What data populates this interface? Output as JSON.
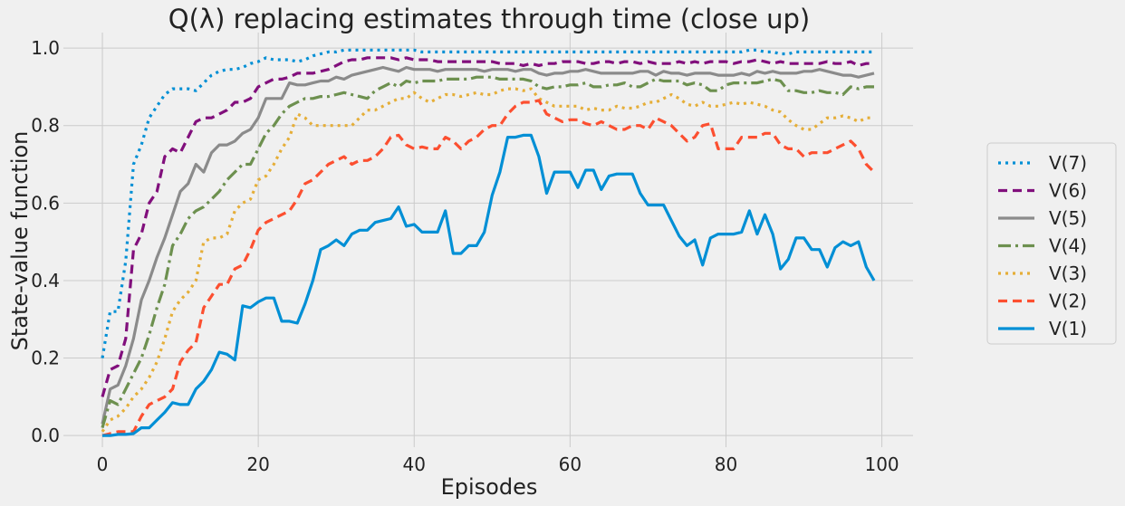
{
  "chart_data": {
    "type": "line",
    "title": "Q(λ) replacing estimates through time (close up)",
    "xlabel": "Episodes",
    "ylabel": "State-value function",
    "xlim": [
      -5,
      104
    ],
    "ylim": [
      -0.03,
      1.04
    ],
    "xticks": [
      0,
      20,
      40,
      60,
      80,
      100
    ],
    "xtick_labels": [
      "0",
      "20",
      "40",
      "60",
      "80",
      "100"
    ],
    "yticks": [
      0.0,
      0.2,
      0.4,
      0.6,
      0.8,
      1.0
    ],
    "ytick_labels": [
      "0.0",
      "0.2",
      "0.4",
      "0.6",
      "0.8",
      "1.0"
    ],
    "grid": true,
    "legend_position": "right",
    "series": [
      {
        "name": "V(7)",
        "color": "#008fd5",
        "dash": "3,5",
        "values": [
          0.2,
          0.32,
          0.32,
          0.45,
          0.7,
          0.75,
          0.82,
          0.85,
          0.88,
          0.895,
          0.895,
          0.895,
          0.89,
          0.91,
          0.93,
          0.94,
          0.945,
          0.945,
          0.95,
          0.96,
          0.965,
          0.975,
          0.97,
          0.97,
          0.97,
          0.965,
          0.97,
          0.98,
          0.985,
          0.99,
          0.99,
          0.995,
          0.995,
          0.995,
          0.995,
          0.995,
          0.995,
          0.995,
          0.995,
          0.995,
          0.995,
          0.99,
          0.99,
          0.99,
          0.99,
          0.99,
          0.99,
          0.99,
          0.99,
          0.99,
          0.99,
          0.99,
          0.99,
          0.99,
          0.99,
          0.99,
          0.99,
          0.99,
          0.99,
          0.99,
          0.99,
          0.99,
          0.99,
          0.99,
          0.99,
          0.99,
          0.99,
          0.99,
          0.99,
          0.99,
          0.99,
          0.99,
          0.99,
          0.99,
          0.99,
          0.99,
          0.99,
          0.99,
          0.99,
          0.99,
          0.99,
          0.99,
          0.99,
          0.995,
          0.995,
          0.99,
          0.99,
          0.985,
          0.985,
          0.99,
          0.99,
          0.99,
          0.99,
          0.99,
          0.99,
          0.99,
          0.99,
          0.99,
          0.99,
          0.99
        ]
      },
      {
        "name": "V(6)",
        "color": "#810f7c",
        "dash": "10,6",
        "values": [
          0.1,
          0.17,
          0.18,
          0.25,
          0.48,
          0.52,
          0.6,
          0.63,
          0.72,
          0.74,
          0.73,
          0.77,
          0.81,
          0.82,
          0.82,
          0.83,
          0.84,
          0.86,
          0.86,
          0.87,
          0.9,
          0.91,
          0.92,
          0.92,
          0.925,
          0.935,
          0.935,
          0.935,
          0.94,
          0.945,
          0.955,
          0.965,
          0.97,
          0.97,
          0.975,
          0.975,
          0.975,
          0.975,
          0.97,
          0.975,
          0.97,
          0.97,
          0.97,
          0.965,
          0.965,
          0.965,
          0.965,
          0.965,
          0.965,
          0.965,
          0.965,
          0.96,
          0.96,
          0.96,
          0.955,
          0.96,
          0.955,
          0.96,
          0.96,
          0.965,
          0.965,
          0.965,
          0.96,
          0.96,
          0.965,
          0.965,
          0.96,
          0.965,
          0.965,
          0.96,
          0.965,
          0.96,
          0.96,
          0.96,
          0.965,
          0.96,
          0.965,
          0.96,
          0.965,
          0.965,
          0.965,
          0.96,
          0.965,
          0.965,
          0.97,
          0.965,
          0.96,
          0.965,
          0.96,
          0.96,
          0.96,
          0.96,
          0.96,
          0.965,
          0.96,
          0.96,
          0.965,
          0.955,
          0.96,
          0.96
        ]
      },
      {
        "name": "V(5)",
        "color": "#8b8b8b",
        "dash": "",
        "values": [
          0.03,
          0.12,
          0.13,
          0.18,
          0.25,
          0.35,
          0.4,
          0.46,
          0.51,
          0.57,
          0.63,
          0.65,
          0.7,
          0.68,
          0.73,
          0.75,
          0.75,
          0.76,
          0.78,
          0.79,
          0.82,
          0.87,
          0.87,
          0.87,
          0.91,
          0.905,
          0.905,
          0.91,
          0.915,
          0.915,
          0.925,
          0.92,
          0.93,
          0.935,
          0.94,
          0.945,
          0.95,
          0.945,
          0.94,
          0.95,
          0.945,
          0.945,
          0.945,
          0.94,
          0.945,
          0.945,
          0.945,
          0.945,
          0.945,
          0.94,
          0.945,
          0.945,
          0.945,
          0.94,
          0.945,
          0.945,
          0.935,
          0.93,
          0.935,
          0.935,
          0.94,
          0.94,
          0.945,
          0.94,
          0.935,
          0.935,
          0.935,
          0.935,
          0.935,
          0.94,
          0.94,
          0.93,
          0.94,
          0.935,
          0.935,
          0.93,
          0.935,
          0.935,
          0.935,
          0.93,
          0.93,
          0.93,
          0.935,
          0.93,
          0.94,
          0.935,
          0.94,
          0.935,
          0.935,
          0.935,
          0.94,
          0.94,
          0.945,
          0.94,
          0.935,
          0.93,
          0.93,
          0.925,
          0.93,
          0.935
        ]
      },
      {
        "name": "V(4)",
        "color": "#6d904f",
        "dash": "14,5,3,5",
        "values": [
          0.02,
          0.09,
          0.08,
          0.12,
          0.16,
          0.2,
          0.26,
          0.33,
          0.39,
          0.49,
          0.52,
          0.56,
          0.58,
          0.59,
          0.61,
          0.63,
          0.66,
          0.68,
          0.7,
          0.7,
          0.74,
          0.78,
          0.8,
          0.83,
          0.85,
          0.86,
          0.87,
          0.87,
          0.875,
          0.875,
          0.88,
          0.885,
          0.88,
          0.875,
          0.87,
          0.89,
          0.9,
          0.91,
          0.9,
          0.915,
          0.91,
          0.915,
          0.915,
          0.915,
          0.92,
          0.92,
          0.92,
          0.92,
          0.925,
          0.925,
          0.925,
          0.92,
          0.92,
          0.92,
          0.92,
          0.915,
          0.9,
          0.895,
          0.9,
          0.9,
          0.905,
          0.905,
          0.91,
          0.9,
          0.9,
          0.905,
          0.905,
          0.91,
          0.9,
          0.9,
          0.91,
          0.92,
          0.915,
          0.915,
          0.915,
          0.905,
          0.91,
          0.905,
          0.89,
          0.89,
          0.905,
          0.91,
          0.91,
          0.91,
          0.91,
          0.915,
          0.92,
          0.915,
          0.89,
          0.89,
          0.885,
          0.885,
          0.89,
          0.885,
          0.885,
          0.88,
          0.9,
          0.895,
          0.9,
          0.9
        ]
      },
      {
        "name": "V(3)",
        "color": "#e5ae38",
        "dash": "3,5",
        "values": [
          0.01,
          0.04,
          0.05,
          0.07,
          0.1,
          0.12,
          0.15,
          0.19,
          0.25,
          0.32,
          0.35,
          0.37,
          0.4,
          0.5,
          0.51,
          0.51,
          0.52,
          0.58,
          0.6,
          0.61,
          0.66,
          0.67,
          0.7,
          0.74,
          0.77,
          0.83,
          0.82,
          0.8,
          0.8,
          0.8,
          0.8,
          0.8,
          0.8,
          0.82,
          0.84,
          0.84,
          0.85,
          0.86,
          0.87,
          0.87,
          0.885,
          0.87,
          0.86,
          0.87,
          0.88,
          0.88,
          0.875,
          0.88,
          0.885,
          0.88,
          0.88,
          0.89,
          0.895,
          0.895,
          0.89,
          0.895,
          0.87,
          0.86,
          0.85,
          0.85,
          0.85,
          0.85,
          0.84,
          0.845,
          0.84,
          0.84,
          0.85,
          0.845,
          0.845,
          0.85,
          0.86,
          0.86,
          0.87,
          0.88,
          0.87,
          0.855,
          0.85,
          0.86,
          0.85,
          0.85,
          0.855,
          0.86,
          0.855,
          0.86,
          0.855,
          0.85,
          0.84,
          0.835,
          0.815,
          0.8,
          0.79,
          0.79,
          0.805,
          0.82,
          0.82,
          0.825,
          0.82,
          0.81,
          0.82,
          0.82
        ]
      },
      {
        "name": "V(2)",
        "color": "#fc4f30",
        "dash": "10,6",
        "values": [
          0.0,
          0.005,
          0.01,
          0.01,
          0.01,
          0.05,
          0.08,
          0.09,
          0.1,
          0.12,
          0.19,
          0.22,
          0.24,
          0.33,
          0.36,
          0.39,
          0.39,
          0.43,
          0.44,
          0.48,
          0.53,
          0.55,
          0.56,
          0.57,
          0.58,
          0.61,
          0.65,
          0.66,
          0.68,
          0.7,
          0.71,
          0.72,
          0.7,
          0.71,
          0.71,
          0.72,
          0.74,
          0.77,
          0.775,
          0.75,
          0.74,
          0.745,
          0.74,
          0.74,
          0.77,
          0.76,
          0.74,
          0.76,
          0.77,
          0.79,
          0.8,
          0.8,
          0.83,
          0.85,
          0.86,
          0.86,
          0.865,
          0.83,
          0.82,
          0.81,
          0.815,
          0.815,
          0.805,
          0.8,
          0.81,
          0.8,
          0.79,
          0.79,
          0.8,
          0.8,
          0.79,
          0.82,
          0.81,
          0.8,
          0.78,
          0.76,
          0.77,
          0.8,
          0.805,
          0.74,
          0.74,
          0.74,
          0.77,
          0.77,
          0.77,
          0.78,
          0.78,
          0.75,
          0.74,
          0.74,
          0.72,
          0.73,
          0.73,
          0.73,
          0.74,
          0.75,
          0.76,
          0.74,
          0.7,
          0.68
        ]
      },
      {
        "name": "V(1)",
        "color": "#008fd5",
        "dash": "",
        "values": [
          0.0,
          0.0,
          0.003,
          0.003,
          0.005,
          0.02,
          0.02,
          0.04,
          0.06,
          0.085,
          0.08,
          0.08,
          0.12,
          0.14,
          0.17,
          0.215,
          0.21,
          0.195,
          0.335,
          0.33,
          0.345,
          0.355,
          0.355,
          0.295,
          0.295,
          0.29,
          0.34,
          0.4,
          0.48,
          0.49,
          0.505,
          0.49,
          0.52,
          0.53,
          0.53,
          0.55,
          0.555,
          0.56,
          0.59,
          0.54,
          0.545,
          0.525,
          0.525,
          0.525,
          0.58,
          0.47,
          0.47,
          0.49,
          0.49,
          0.525,
          0.62,
          0.68,
          0.77,
          0.77,
          0.775,
          0.775,
          0.72,
          0.625,
          0.68,
          0.68,
          0.68,
          0.64,
          0.685,
          0.685,
          0.635,
          0.67,
          0.675,
          0.675,
          0.675,
          0.625,
          0.595,
          0.595,
          0.595,
          0.555,
          0.515,
          0.49,
          0.505,
          0.44,
          0.51,
          0.52,
          0.52,
          0.52,
          0.525,
          0.58,
          0.52,
          0.57,
          0.52,
          0.43,
          0.455,
          0.51,
          0.51,
          0.48,
          0.48,
          0.435,
          0.485,
          0.5,
          0.49,
          0.5,
          0.435,
          0.4
        ]
      }
    ]
  }
}
